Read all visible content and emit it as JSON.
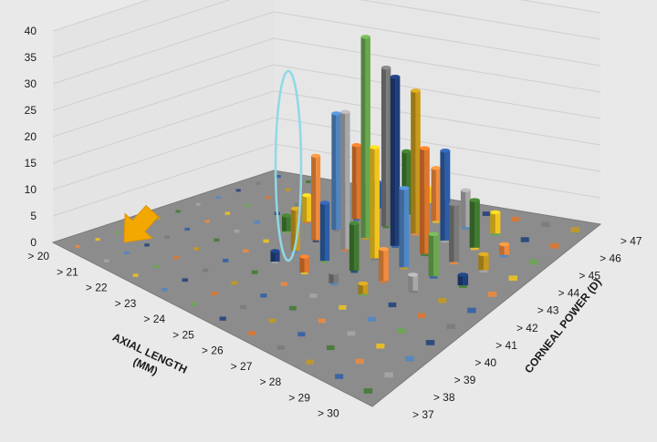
{
  "chart_data": {
    "type": "bar3d",
    "z_ticks": [
      "0",
      "5",
      "10",
      "15",
      "20",
      "25",
      "30",
      "35",
      "40"
    ],
    "zlim": [
      0,
      40
    ],
    "x_axis": {
      "title_line1": "AXIAL LENGTH",
      "title_line2": "(MM)",
      "ticks": [
        "> 20",
        "> 21",
        "> 22",
        "> 23",
        "> 24",
        "> 25",
        "> 26",
        "> 27",
        "> 28",
        "> 29",
        "> 30"
      ]
    },
    "y_axis": {
      "title": "CORNEAL POWER (D)",
      "ticks": [
        "> 37",
        "> 38",
        "> 39",
        "> 40",
        "> 41",
        "> 42",
        "> 43",
        "> 44",
        "> 45",
        "> 46",
        "> 47"
      ]
    },
    "series_colors": [
      "#f08a3c",
      "#a7a7a7",
      "#f2c51c",
      "#4f86c6",
      "#6aa84f",
      "#1f3f7a",
      "#e0752a",
      "#7a7a7a",
      "#c79a1e",
      "#2d5ea8",
      "#3f7a2e"
    ],
    "highlight_color": "#8fd8e8",
    "arrow_color": "#f2a800",
    "bars": [
      {
        "ax": "> 23",
        "cp": "> 43",
        "value": 3
      },
      {
        "ax": "> 23",
        "cp": "> 44",
        "value": 5
      },
      {
        "ax": "> 24",
        "cp": "> 41",
        "value": 2
      },
      {
        "ax": "> 24",
        "cp": "> 42",
        "value": 8
      },
      {
        "ax": "> 24",
        "cp": "> 43",
        "value": 16
      },
      {
        "ax": "> 24",
        "cp": "> 44",
        "value": 22
      },
      {
        "ax": "> 24",
        "cp": "> 45",
        "value": 14
      },
      {
        "ax": "> 24",
        "cp": "> 46",
        "value": 5
      },
      {
        "ax": "> 25",
        "cp": "> 41",
        "value": 3
      },
      {
        "ax": "> 25",
        "cp": "> 42",
        "value": 11
      },
      {
        "ax": "> 25",
        "cp": "> 43",
        "value": 26
      },
      {
        "ax": "> 25",
        "cp": "> 44",
        "value": 38
      },
      {
        "ax": "> 25",
        "cp": "> 45",
        "value": 30
      },
      {
        "ax": "> 25",
        "cp": "> 46",
        "value": 12
      },
      {
        "ax": "> 25",
        "cp": "> 47",
        "value": 3
      },
      {
        "ax": "> 26",
        "cp": "> 41",
        "value": 2
      },
      {
        "ax": "> 26",
        "cp": "> 42",
        "value": 9
      },
      {
        "ax": "> 26",
        "cp": "> 43",
        "value": 21
      },
      {
        "ax": "> 26",
        "cp": "> 44",
        "value": 32
      },
      {
        "ax": "> 26",
        "cp": "> 45",
        "value": 27
      },
      {
        "ax": "> 26",
        "cp": "> 46",
        "value": 10
      },
      {
        "ax": "> 27",
        "cp": "> 41",
        "value": 2
      },
      {
        "ax": "> 27",
        "cp": "> 42",
        "value": 6
      },
      {
        "ax": "> 27",
        "cp": "> 43",
        "value": 15
      },
      {
        "ax": "> 27",
        "cp": "> 44",
        "value": 20
      },
      {
        "ax": "> 27",
        "cp": "> 45",
        "value": 17
      },
      {
        "ax": "> 27",
        "cp": "> 46",
        "value": 7
      },
      {
        "ax": "> 28",
        "cp": "> 42",
        "value": 3
      },
      {
        "ax": "> 28",
        "cp": "> 43",
        "value": 8
      },
      {
        "ax": "> 28",
        "cp": "> 44",
        "value": 11
      },
      {
        "ax": "> 28",
        "cp": "> 45",
        "value": 9
      },
      {
        "ax": "> 28",
        "cp": "> 46",
        "value": 4
      },
      {
        "ax": "> 29",
        "cp": "> 43",
        "value": 2
      },
      {
        "ax": "> 29",
        "cp": "> 44",
        "value": 3
      },
      {
        "ax": "> 29",
        "cp": "> 45",
        "value": 2
      }
    ]
  }
}
